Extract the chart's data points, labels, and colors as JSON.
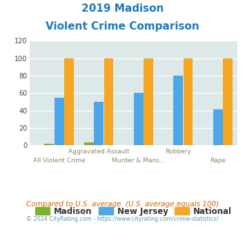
{
  "title_line1": "2019 Madison",
  "title_line2": "Violent Crime Comparison",
  "categories": [
    "All Violent Crime",
    "Aggravated Assault",
    "Murder & Mans...",
    "Robbery",
    "Rape"
  ],
  "madison": [
    2,
    3,
    0,
    0,
    0
  ],
  "new_jersey": [
    55,
    50,
    60,
    80,
    41
  ],
  "national": [
    100,
    100,
    100,
    100,
    100
  ],
  "madison_color": "#7db32a",
  "nj_color": "#4da6e8",
  "national_color": "#f5a623",
  "bg_color": "#dde8e8",
  "ylim": [
    0,
    120
  ],
  "yticks": [
    0,
    20,
    40,
    60,
    80,
    100,
    120
  ],
  "top_labels": [
    "",
    "Aggravated Assault",
    "",
    "Robbery",
    ""
  ],
  "bottom_labels": [
    "All Violent Crime",
    "",
    "Murder & Mans...",
    "",
    "Rape"
  ],
  "footnote1": "Compared to U.S. average. (U.S. average equals 100)",
  "footnote2": "© 2024 CityRating.com - https://www.cityrating.com/crime-statistics/",
  "title_color": "#1a7abf",
  "footnote1_color": "#cc6600",
  "footnote2_color": "#5599bb",
  "legend_labels": [
    "Madison",
    "New Jersey",
    "National"
  ]
}
